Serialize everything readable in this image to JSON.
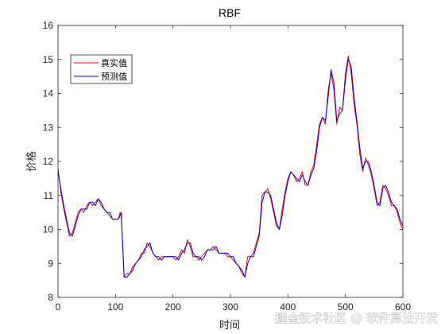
{
  "chart_data": {
    "type": "line",
    "title": "RBF",
    "xlabel": "时间",
    "ylabel": "价格",
    "xlim": [
      0,
      600
    ],
    "ylim": [
      8,
      16
    ],
    "xticks": [
      0,
      100,
      200,
      300,
      400,
      500,
      600
    ],
    "yticks": [
      8,
      9,
      10,
      11,
      12,
      13,
      14,
      15,
      16
    ],
    "grid": false,
    "legend_position": "top-left",
    "series": [
      {
        "name": "真实值",
        "color": "#ff0000",
        "x": [
          0,
          5,
          10,
          15,
          20,
          25,
          30,
          35,
          40,
          45,
          50,
          55,
          60,
          65,
          70,
          75,
          80,
          85,
          90,
          95,
          100,
          105,
          108,
          110,
          115,
          120,
          125,
          130,
          135,
          140,
          145,
          150,
          155,
          160,
          165,
          170,
          175,
          180,
          185,
          190,
          195,
          200,
          205,
          210,
          215,
          220,
          225,
          230,
          235,
          240,
          245,
          250,
          255,
          260,
          265,
          270,
          275,
          280,
          285,
          290,
          295,
          300,
          305,
          310,
          315,
          320,
          325,
          330,
          335,
          340,
          345,
          350,
          355,
          360,
          365,
          370,
          375,
          380,
          385,
          390,
          395,
          400,
          405,
          410,
          415,
          420,
          425,
          430,
          435,
          440,
          445,
          450,
          455,
          460,
          465,
          470,
          475,
          480,
          485,
          490,
          495,
          500,
          505,
          510,
          515,
          520,
          525,
          530,
          535,
          540,
          545,
          550,
          555,
          560,
          565,
          570,
          575,
          580,
          585,
          590,
          595,
          600
        ],
        "y": [
          11.8,
          11.1,
          10.6,
          10.2,
          9.8,
          9.9,
          10.2,
          10.5,
          10.6,
          10.5,
          10.7,
          10.8,
          10.7,
          10.8,
          10.9,
          10.7,
          10.6,
          10.5,
          10.4,
          10.3,
          10.3,
          10.3,
          10.5,
          10.4,
          8.6,
          8.7,
          8.7,
          8.9,
          9.0,
          9.1,
          9.3,
          9.3,
          9.6,
          9.5,
          9.3,
          9.2,
          9.1,
          9.2,
          9.2,
          9.2,
          9.2,
          9.2,
          9.1,
          9.2,
          9.4,
          9.3,
          9.7,
          9.5,
          9.2,
          9.2,
          9.1,
          9.2,
          9.3,
          9.4,
          9.4,
          9.5,
          9.4,
          9.3,
          9.3,
          9.3,
          9.2,
          9.2,
          9.1,
          9.0,
          8.9,
          8.7,
          8.6,
          9.2,
          9.2,
          9.3,
          9.6,
          9.9,
          11.0,
          11.1,
          11.2,
          10.9,
          10.5,
          10.1,
          10.0,
          10.6,
          11.1,
          11.5,
          11.7,
          11.6,
          11.4,
          11.5,
          11.7,
          11.3,
          11.3,
          11.7,
          11.9,
          12.5,
          13.1,
          13.3,
          13.1,
          14.1,
          14.6,
          14.1,
          13.1,
          13.6,
          13.5,
          14.6,
          15.1,
          14.6,
          13.7,
          13.1,
          12.2,
          11.7,
          12.1,
          11.9,
          11.6,
          11.2,
          10.7,
          10.8,
          11.3,
          11.2,
          11.0,
          10.7,
          10.7,
          10.5,
          10.2,
          10.0
        ]
      },
      {
        "name": "预测值",
        "color": "#0000ff",
        "x": [
          0,
          5,
          10,
          15,
          20,
          25,
          30,
          35,
          40,
          45,
          50,
          55,
          60,
          65,
          70,
          75,
          80,
          85,
          90,
          95,
          100,
          105,
          108,
          110,
          115,
          120,
          125,
          130,
          135,
          140,
          145,
          150,
          155,
          160,
          165,
          170,
          175,
          180,
          185,
          190,
          195,
          200,
          205,
          210,
          215,
          220,
          225,
          230,
          235,
          240,
          245,
          250,
          255,
          260,
          265,
          270,
          275,
          280,
          285,
          290,
          295,
          300,
          305,
          310,
          315,
          320,
          325,
          330,
          335,
          340,
          345,
          350,
          355,
          360,
          365,
          370,
          375,
          380,
          385,
          390,
          395,
          400,
          405,
          410,
          415,
          420,
          425,
          430,
          435,
          440,
          445,
          450,
          455,
          460,
          465,
          470,
          475,
          480,
          485,
          490,
          495,
          500,
          505,
          510,
          515,
          520,
          525,
          530,
          535,
          540,
          545,
          550,
          555,
          560,
          565,
          570,
          575,
          580,
          585,
          590,
          595,
          600
        ],
        "y": [
          11.7,
          11.2,
          10.7,
          10.3,
          9.9,
          9.8,
          10.1,
          10.4,
          10.6,
          10.6,
          10.6,
          10.8,
          10.8,
          10.7,
          10.9,
          10.8,
          10.6,
          10.5,
          10.5,
          10.3,
          10.3,
          10.3,
          10.4,
          10.5,
          8.6,
          8.6,
          8.7,
          8.8,
          9.0,
          9.1,
          9.2,
          9.4,
          9.5,
          9.6,
          9.3,
          9.2,
          9.2,
          9.1,
          9.2,
          9.2,
          9.2,
          9.2,
          9.2,
          9.1,
          9.3,
          9.4,
          9.6,
          9.6,
          9.3,
          9.2,
          9.2,
          9.1,
          9.2,
          9.4,
          9.4,
          9.4,
          9.5,
          9.3,
          9.3,
          9.3,
          9.3,
          9.2,
          9.2,
          9.0,
          8.9,
          8.8,
          8.6,
          9.0,
          9.2,
          9.2,
          9.5,
          9.8,
          10.8,
          11.1,
          11.1,
          11.0,
          10.6,
          10.2,
          10.0,
          10.4,
          11.0,
          11.4,
          11.7,
          11.6,
          11.5,
          11.4,
          11.6,
          11.4,
          11.3,
          11.6,
          11.8,
          12.3,
          13.0,
          13.3,
          13.2,
          13.9,
          14.7,
          14.3,
          13.2,
          13.4,
          13.5,
          14.4,
          15.0,
          14.8,
          13.9,
          13.2,
          12.4,
          11.8,
          12.0,
          12.0,
          11.7,
          11.3,
          10.8,
          10.7,
          11.2,
          11.3,
          11.1,
          10.8,
          10.7,
          10.6,
          10.3,
          10.1
        ]
      }
    ]
  },
  "watermark": {
    "text": "掘金技术社区 @ 软件算法开发"
  }
}
